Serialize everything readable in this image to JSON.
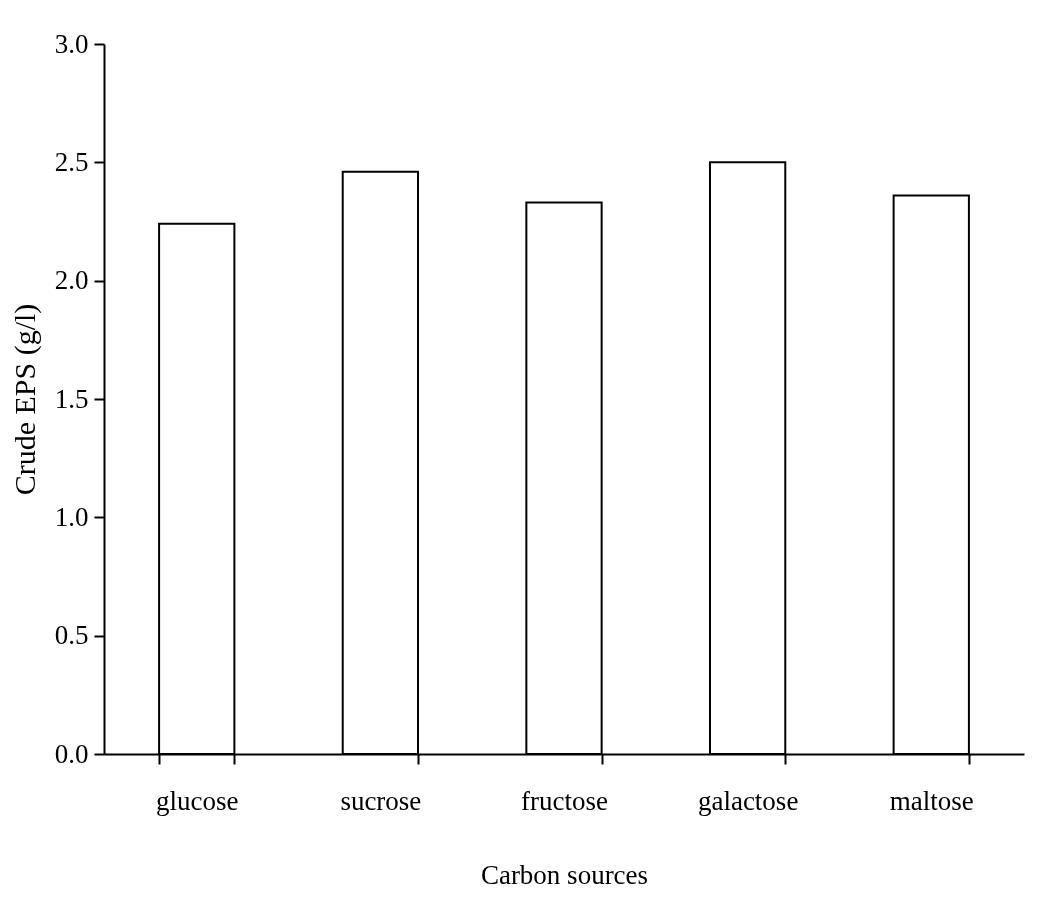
{
  "chart_data": {
    "type": "bar",
    "xlabel": "Carbon sources",
    "ylabel": "Crude EPS (g/l)",
    "categories": [
      "glucose",
      "sucrose",
      "fructose",
      "galactose",
      "maltose"
    ],
    "values": [
      2.24,
      2.46,
      2.33,
      2.5,
      2.36
    ],
    "colors": [
      "#ffffff",
      "#ffffff",
      "#ffffff",
      "#ffffff",
      "#ffffff"
    ],
    "ylim": [
      0,
      3
    ],
    "yticks": [
      {
        "value": 0,
        "label": "0.0"
      },
      {
        "value": 0.5,
        "label": "0.5"
      },
      {
        "value": 1,
        "label": "1.0"
      },
      {
        "value": 1.5,
        "label": "1.5"
      },
      {
        "value": 2,
        "label": "2.0"
      },
      {
        "value": 2.5,
        "label": "2.5"
      },
      {
        "value": 3,
        "label": "3.0"
      }
    ]
  }
}
